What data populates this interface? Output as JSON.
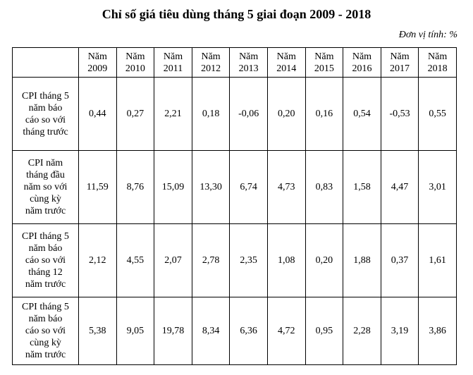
{
  "title": "Chỉ số giá tiêu dùng tháng 5 giai đoạn 2009 - 2018",
  "unit": "Đơn vị tính: %",
  "header": {
    "corner": "",
    "years": [
      {
        "prefix": "Năm",
        "year": "2009"
      },
      {
        "prefix": "Năm",
        "year": "2010"
      },
      {
        "prefix": "Năm",
        "year": "2011"
      },
      {
        "prefix": "Năm",
        "year": "2012"
      },
      {
        "prefix": "Năm",
        "year": "2013"
      },
      {
        "prefix": "Năm",
        "year": "2014"
      },
      {
        "prefix": "Năm",
        "year": "2015"
      },
      {
        "prefix": "Năm",
        "year": "2016"
      },
      {
        "prefix": "Năm",
        "year": "2017"
      },
      {
        "prefix": "Năm",
        "year": "2018"
      }
    ]
  },
  "rows": [
    {
      "label": [
        "CPI tháng 5",
        "năm báo",
        "cáo so với",
        "tháng trước"
      ],
      "values": [
        "0,44",
        "0,27",
        "2,21",
        "0,18",
        "-0,06",
        "0,20",
        "0,16",
        "0,54",
        "-0,53",
        "0,55"
      ]
    },
    {
      "label": [
        "CPI năm",
        "tháng đầu",
        "năm so với",
        "cùng kỳ",
        "năm trước"
      ],
      "values": [
        "11,59",
        "8,76",
        "15,09",
        "13,30",
        "6,74",
        "4,73",
        "0,83",
        "1,58",
        "4,47",
        "3,01"
      ]
    },
    {
      "label": [
        "CPI tháng 5",
        "năm báo",
        "cáo so với",
        "tháng 12",
        "năm trước"
      ],
      "values": [
        "2,12",
        "4,55",
        "2,07",
        "2,78",
        "2,35",
        "1,08",
        "0,20",
        "1,88",
        "0,37",
        "1,61"
      ]
    },
    {
      "label": [
        "CPI tháng 5",
        "năm báo",
        "cáo so với",
        "cùng kỳ",
        "năm trước"
      ],
      "values": [
        "5,38",
        "9,05",
        "19,78",
        "8,34",
        "6,36",
        "4,72",
        "0,95",
        "2,28",
        "3,19",
        "3,86"
      ]
    }
  ]
}
